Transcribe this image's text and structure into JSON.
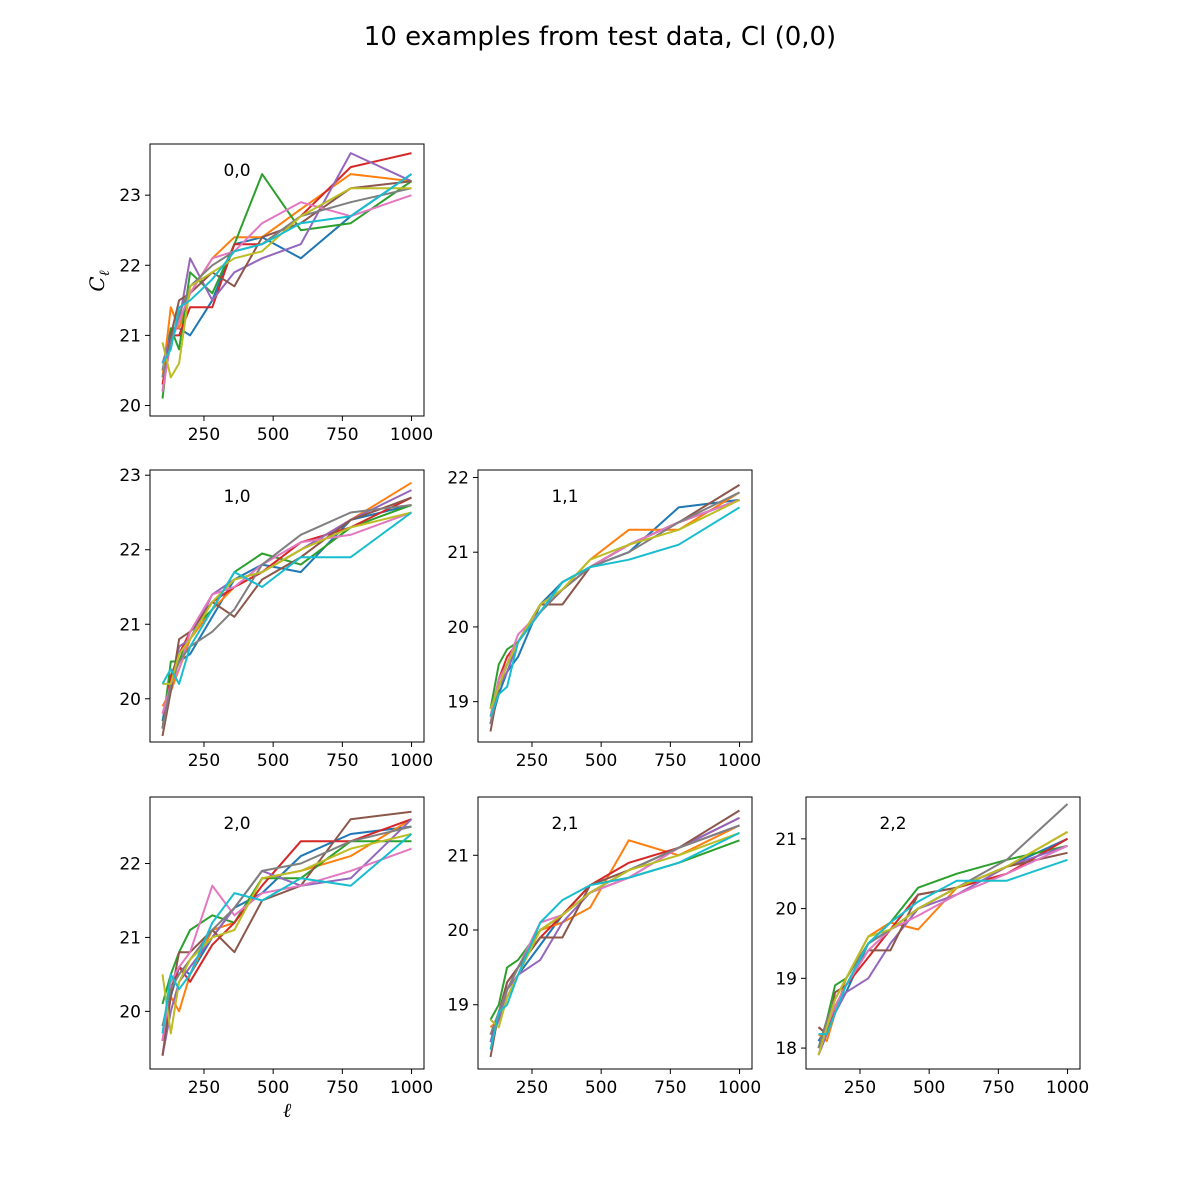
{
  "figure": {
    "title": "10 examples from test data, Cl (0,0)",
    "xlabel": "ℓ",
    "ylabel": "C",
    "ylabel_sub": "ℓ"
  },
  "colors": [
    "#1f77b4",
    "#ff7f0e",
    "#2ca02c",
    "#d62728",
    "#9467bd",
    "#8c564b",
    "#e377c2",
    "#7f7f7f",
    "#bcbd22",
    "#17becf"
  ],
  "chart_data": [
    {
      "type": "line",
      "label": "0,0",
      "x": [
        100,
        130,
        160,
        200,
        280,
        360,
        460,
        600,
        780,
        1000
      ],
      "xticks": [
        250,
        500,
        750,
        1000
      ],
      "xlim": [
        55,
        1045
      ],
      "yticks": [
        20,
        21,
        22,
        23
      ],
      "ylim": [
        19.85,
        23.73
      ],
      "series": [
        {
          "values": [
            20.5,
            21.1,
            21.1,
            21.0,
            21.5,
            22.3,
            22.4,
            22.1,
            22.7,
            23.3
          ]
        },
        {
          "values": [
            20.4,
            21.4,
            21.1,
            21.6,
            22.1,
            22.4,
            22.4,
            22.8,
            23.3,
            23.2
          ]
        },
        {
          "values": [
            20.1,
            21.1,
            20.8,
            21.9,
            21.6,
            22.3,
            23.3,
            22.5,
            22.6,
            23.2
          ]
        },
        {
          "values": [
            20.3,
            21.0,
            21.0,
            21.4,
            21.4,
            22.3,
            22.3,
            22.7,
            23.4,
            23.6
          ]
        },
        {
          "values": [
            20.6,
            21.0,
            21.2,
            22.1,
            21.5,
            21.9,
            22.1,
            22.3,
            23.6,
            23.2
          ]
        },
        {
          "values": [
            20.2,
            21.0,
            21.5,
            21.6,
            21.9,
            21.7,
            22.4,
            22.6,
            23.1,
            23.2
          ]
        },
        {
          "values": [
            20.2,
            20.9,
            21.2,
            21.6,
            22.1,
            22.2,
            22.6,
            22.9,
            22.7,
            23.0
          ]
        },
        {
          "values": [
            20.4,
            20.9,
            21.3,
            21.7,
            22.0,
            22.2,
            22.3,
            22.7,
            22.9,
            23.1
          ]
        },
        {
          "values": [
            20.9,
            20.4,
            20.6,
            21.7,
            21.9,
            22.1,
            22.2,
            22.7,
            23.1,
            23.1
          ]
        },
        {
          "values": [
            20.6,
            20.8,
            21.4,
            21.5,
            21.8,
            22.2,
            22.3,
            22.6,
            22.7,
            23.3
          ]
        }
      ]
    },
    {
      "type": "line",
      "label": "1,0",
      "x": [
        100,
        130,
        160,
        200,
        280,
        360,
        460,
        600,
        780,
        1000
      ],
      "xticks": [
        250,
        500,
        750,
        1000
      ],
      "xlim": [
        55,
        1045
      ],
      "yticks": [
        20,
        21,
        22,
        23
      ],
      "ylim": [
        19.42,
        23.07
      ],
      "series": [
        {
          "values": [
            19.7,
            20.3,
            20.5,
            20.6,
            21.1,
            21.6,
            21.8,
            21.7,
            22.4,
            22.6
          ]
        },
        {
          "values": [
            19.9,
            20.1,
            20.4,
            20.8,
            21.2,
            21.5,
            21.7,
            22.0,
            22.4,
            22.9
          ]
        },
        {
          "values": [
            19.6,
            20.5,
            20.5,
            20.9,
            21.2,
            21.7,
            21.95,
            21.8,
            22.3,
            22.6
          ]
        },
        {
          "values": [
            19.6,
            20.3,
            20.6,
            20.9,
            21.3,
            21.5,
            21.7,
            22.1,
            22.3,
            22.7
          ]
        },
        {
          "values": [
            19.8,
            20.1,
            20.7,
            20.8,
            21.4,
            21.6,
            21.7,
            22.0,
            22.4,
            22.8
          ]
        },
        {
          "values": [
            19.5,
            20.1,
            20.8,
            20.9,
            21.3,
            21.1,
            21.6,
            21.9,
            22.4,
            22.7
          ]
        },
        {
          "values": [
            19.8,
            20.2,
            20.4,
            20.9,
            21.4,
            21.5,
            21.8,
            22.1,
            22.2,
            22.5
          ]
        },
        {
          "values": [
            19.6,
            20.2,
            20.5,
            20.7,
            20.9,
            21.2,
            21.8,
            22.2,
            22.5,
            22.6
          ]
        },
        {
          "values": [
            20.2,
            20.2,
            20.6,
            20.8,
            21.3,
            21.6,
            21.7,
            22.0,
            22.3,
            22.5
          ]
        },
        {
          "values": [
            20.2,
            20.4,
            20.2,
            20.7,
            21.2,
            21.7,
            21.5,
            21.9,
            21.9,
            22.5
          ]
        }
      ]
    },
    {
      "type": "line",
      "label": "1,1",
      "x": [
        100,
        130,
        160,
        200,
        280,
        360,
        460,
        600,
        780,
        1000
      ],
      "xticks": [
        250,
        500,
        750,
        1000
      ],
      "xlim": [
        55,
        1045
      ],
      "yticks": [
        19,
        20,
        21,
        22
      ],
      "ylim": [
        18.46,
        22.1
      ],
      "series": [
        {
          "values": [
            18.7,
            19.1,
            19.4,
            19.6,
            20.3,
            20.6,
            20.8,
            21.0,
            21.6,
            21.7
          ]
        },
        {
          "values": [
            18.8,
            19.3,
            19.5,
            19.8,
            20.3,
            20.5,
            20.9,
            21.3,
            21.3,
            21.8
          ]
        },
        {
          "values": [
            18.9,
            19.5,
            19.7,
            19.8,
            20.2,
            20.6,
            20.8,
            21.1,
            21.4,
            21.7
          ]
        },
        {
          "values": [
            18.7,
            19.3,
            19.6,
            19.8,
            20.2,
            20.5,
            20.8,
            21.1,
            21.4,
            21.7
          ]
        },
        {
          "values": [
            18.7,
            19.2,
            19.4,
            19.8,
            20.3,
            20.5,
            20.8,
            21.1,
            21.4,
            21.7
          ]
        },
        {
          "values": [
            18.6,
            19.2,
            19.5,
            19.8,
            20.3,
            20.3,
            20.8,
            21.1,
            21.4,
            21.9
          ]
        },
        {
          "values": [
            18.8,
            19.3,
            19.5,
            19.9,
            20.2,
            20.5,
            20.8,
            21.1,
            21.4,
            21.7
          ]
        },
        {
          "values": [
            18.7,
            19.2,
            19.5,
            19.8,
            20.2,
            20.5,
            20.8,
            21.0,
            21.4,
            21.8
          ]
        },
        {
          "values": [
            18.9,
            19.2,
            19.5,
            19.8,
            20.3,
            20.5,
            20.9,
            21.1,
            21.3,
            21.7
          ]
        },
        {
          "values": [
            18.8,
            19.1,
            19.2,
            19.8,
            20.2,
            20.6,
            20.8,
            20.9,
            21.1,
            21.6
          ]
        }
      ]
    },
    {
      "type": "line",
      "label": "2,0",
      "x": [
        100,
        130,
        160,
        200,
        280,
        360,
        460,
        600,
        780,
        1000
      ],
      "xticks": [
        250,
        500,
        750,
        1000
      ],
      "xlim": [
        55,
        1045
      ],
      "yticks": [
        20,
        21,
        22
      ],
      "ylim": [
        19.22,
        22.9
      ],
      "series": [
        {
          "values": [
            19.6,
            20.2,
            20.6,
            20.5,
            21.0,
            21.4,
            21.6,
            22.1,
            22.4,
            22.5
          ]
        },
        {
          "values": [
            19.8,
            20.2,
            20.0,
            20.5,
            21.1,
            21.2,
            21.8,
            21.9,
            22.1,
            22.6
          ]
        },
        {
          "values": [
            20.1,
            20.5,
            20.8,
            21.1,
            21.3,
            21.2,
            21.8,
            21.8,
            22.3,
            22.3
          ]
        },
        {
          "values": [
            19.6,
            20.3,
            20.6,
            20.4,
            20.9,
            21.2,
            21.7,
            22.3,
            22.3,
            22.6
          ]
        },
        {
          "values": [
            19.4,
            20.0,
            20.4,
            20.6,
            21.0,
            21.4,
            21.9,
            21.7,
            21.8,
            22.6
          ]
        },
        {
          "values": [
            19.4,
            20.2,
            20.8,
            20.8,
            21.1,
            20.8,
            21.5,
            21.7,
            22.6,
            22.7
          ]
        },
        {
          "values": [
            19.6,
            20.4,
            20.6,
            20.8,
            21.7,
            21.3,
            21.6,
            21.7,
            21.9,
            22.2
          ]
        },
        {
          "values": [
            19.8,
            20.3,
            20.5,
            20.7,
            21.1,
            21.4,
            21.9,
            22.0,
            22.3,
            22.5
          ]
        },
        {
          "values": [
            20.5,
            19.7,
            20.4,
            20.7,
            21.0,
            21.1,
            21.8,
            21.9,
            22.2,
            22.4
          ]
        },
        {
          "values": [
            19.7,
            20.5,
            20.3,
            20.5,
            21.2,
            21.6,
            21.5,
            21.8,
            21.7,
            22.4
          ]
        }
      ]
    },
    {
      "type": "line",
      "label": "2,1",
      "x": [
        100,
        130,
        160,
        200,
        280,
        360,
        460,
        600,
        780,
        1000
      ],
      "xticks": [
        250,
        500,
        750,
        1000
      ],
      "xlim": [
        55,
        1045
      ],
      "yticks": [
        19,
        20,
        21
      ],
      "ylim": [
        18.14,
        21.78
      ],
      "series": [
        {
          "values": [
            18.5,
            18.9,
            19.1,
            19.4,
            19.8,
            20.2,
            20.5,
            20.8,
            21.1,
            21.4
          ]
        },
        {
          "values": [
            18.7,
            18.8,
            19.2,
            19.5,
            20.0,
            20.1,
            20.3,
            21.2,
            21.0,
            21.4
          ]
        },
        {
          "values": [
            18.8,
            19.0,
            19.5,
            19.6,
            20.0,
            20.2,
            20.6,
            20.7,
            20.9,
            21.2
          ]
        },
        {
          "values": [
            18.6,
            18.8,
            19.3,
            19.5,
            19.9,
            20.2,
            20.6,
            20.9,
            21.1,
            21.5
          ]
        },
        {
          "values": [
            18.5,
            18.8,
            19.2,
            19.4,
            19.6,
            20.1,
            20.5,
            20.7,
            21.1,
            21.5
          ]
        },
        {
          "values": [
            18.3,
            18.9,
            19.3,
            19.5,
            19.9,
            19.9,
            20.6,
            20.8,
            21.1,
            21.6
          ]
        },
        {
          "values": [
            18.6,
            18.9,
            19.2,
            19.5,
            20.1,
            20.2,
            20.5,
            20.7,
            21.1,
            21.4
          ]
        },
        {
          "values": [
            18.6,
            18.9,
            19.2,
            19.5,
            20.0,
            20.2,
            20.5,
            20.8,
            21.1,
            21.4
          ]
        },
        {
          "values": [
            18.8,
            18.7,
            19.1,
            19.4,
            20.0,
            20.2,
            20.5,
            20.8,
            21.0,
            21.3
          ]
        },
        {
          "values": [
            18.4,
            18.9,
            19.0,
            19.4,
            20.1,
            20.4,
            20.6,
            20.7,
            20.9,
            21.3
          ]
        }
      ]
    },
    {
      "type": "line",
      "label": "2,2",
      "x": [
        100,
        130,
        160,
        200,
        280,
        360,
        460,
        600,
        780,
        1000
      ],
      "xticks": [
        250,
        500,
        750,
        1000
      ],
      "xlim": [
        55,
        1045
      ],
      "yticks": [
        18,
        19,
        20,
        21
      ],
      "ylim": [
        17.7,
        21.6
      ],
      "series": [
        {
          "values": [
            18.1,
            18.3,
            18.6,
            18.8,
            19.5,
            19.7,
            20.0,
            20.3,
            20.6,
            21.0
          ]
        },
        {
          "values": [
            18.2,
            18.1,
            18.5,
            19.0,
            19.6,
            19.8,
            19.7,
            20.3,
            20.6,
            21.1
          ]
        },
        {
          "values": [
            18.0,
            18.4,
            18.9,
            19.0,
            19.5,
            19.8,
            20.3,
            20.5,
            20.7,
            20.9
          ]
        },
        {
          "values": [
            18.3,
            18.2,
            18.6,
            18.9,
            19.3,
            19.7,
            20.2,
            20.3,
            20.5,
            21.0
          ]
        },
        {
          "values": [
            17.9,
            18.2,
            18.5,
            18.8,
            19.0,
            19.5,
            20.0,
            20.2,
            20.6,
            20.9
          ]
        },
        {
          "values": [
            18.3,
            18.2,
            18.8,
            18.9,
            19.4,
            19.4,
            20.2,
            20.3,
            20.6,
            20.8
          ]
        },
        {
          "values": [
            17.9,
            18.3,
            18.6,
            18.9,
            19.4,
            19.7,
            19.9,
            20.2,
            20.5,
            20.9
          ]
        },
        {
          "values": [
            18.0,
            18.4,
            18.7,
            19.0,
            19.5,
            19.7,
            20.0,
            20.3,
            20.7,
            21.5
          ]
        },
        {
          "values": [
            17.9,
            18.3,
            18.7,
            19.0,
            19.6,
            19.7,
            20.0,
            20.3,
            20.6,
            21.1
          ]
        },
        {
          "values": [
            18.2,
            18.2,
            18.5,
            18.9,
            19.5,
            19.8,
            20.1,
            20.4,
            20.4,
            20.7
          ]
        }
      ]
    }
  ]
}
